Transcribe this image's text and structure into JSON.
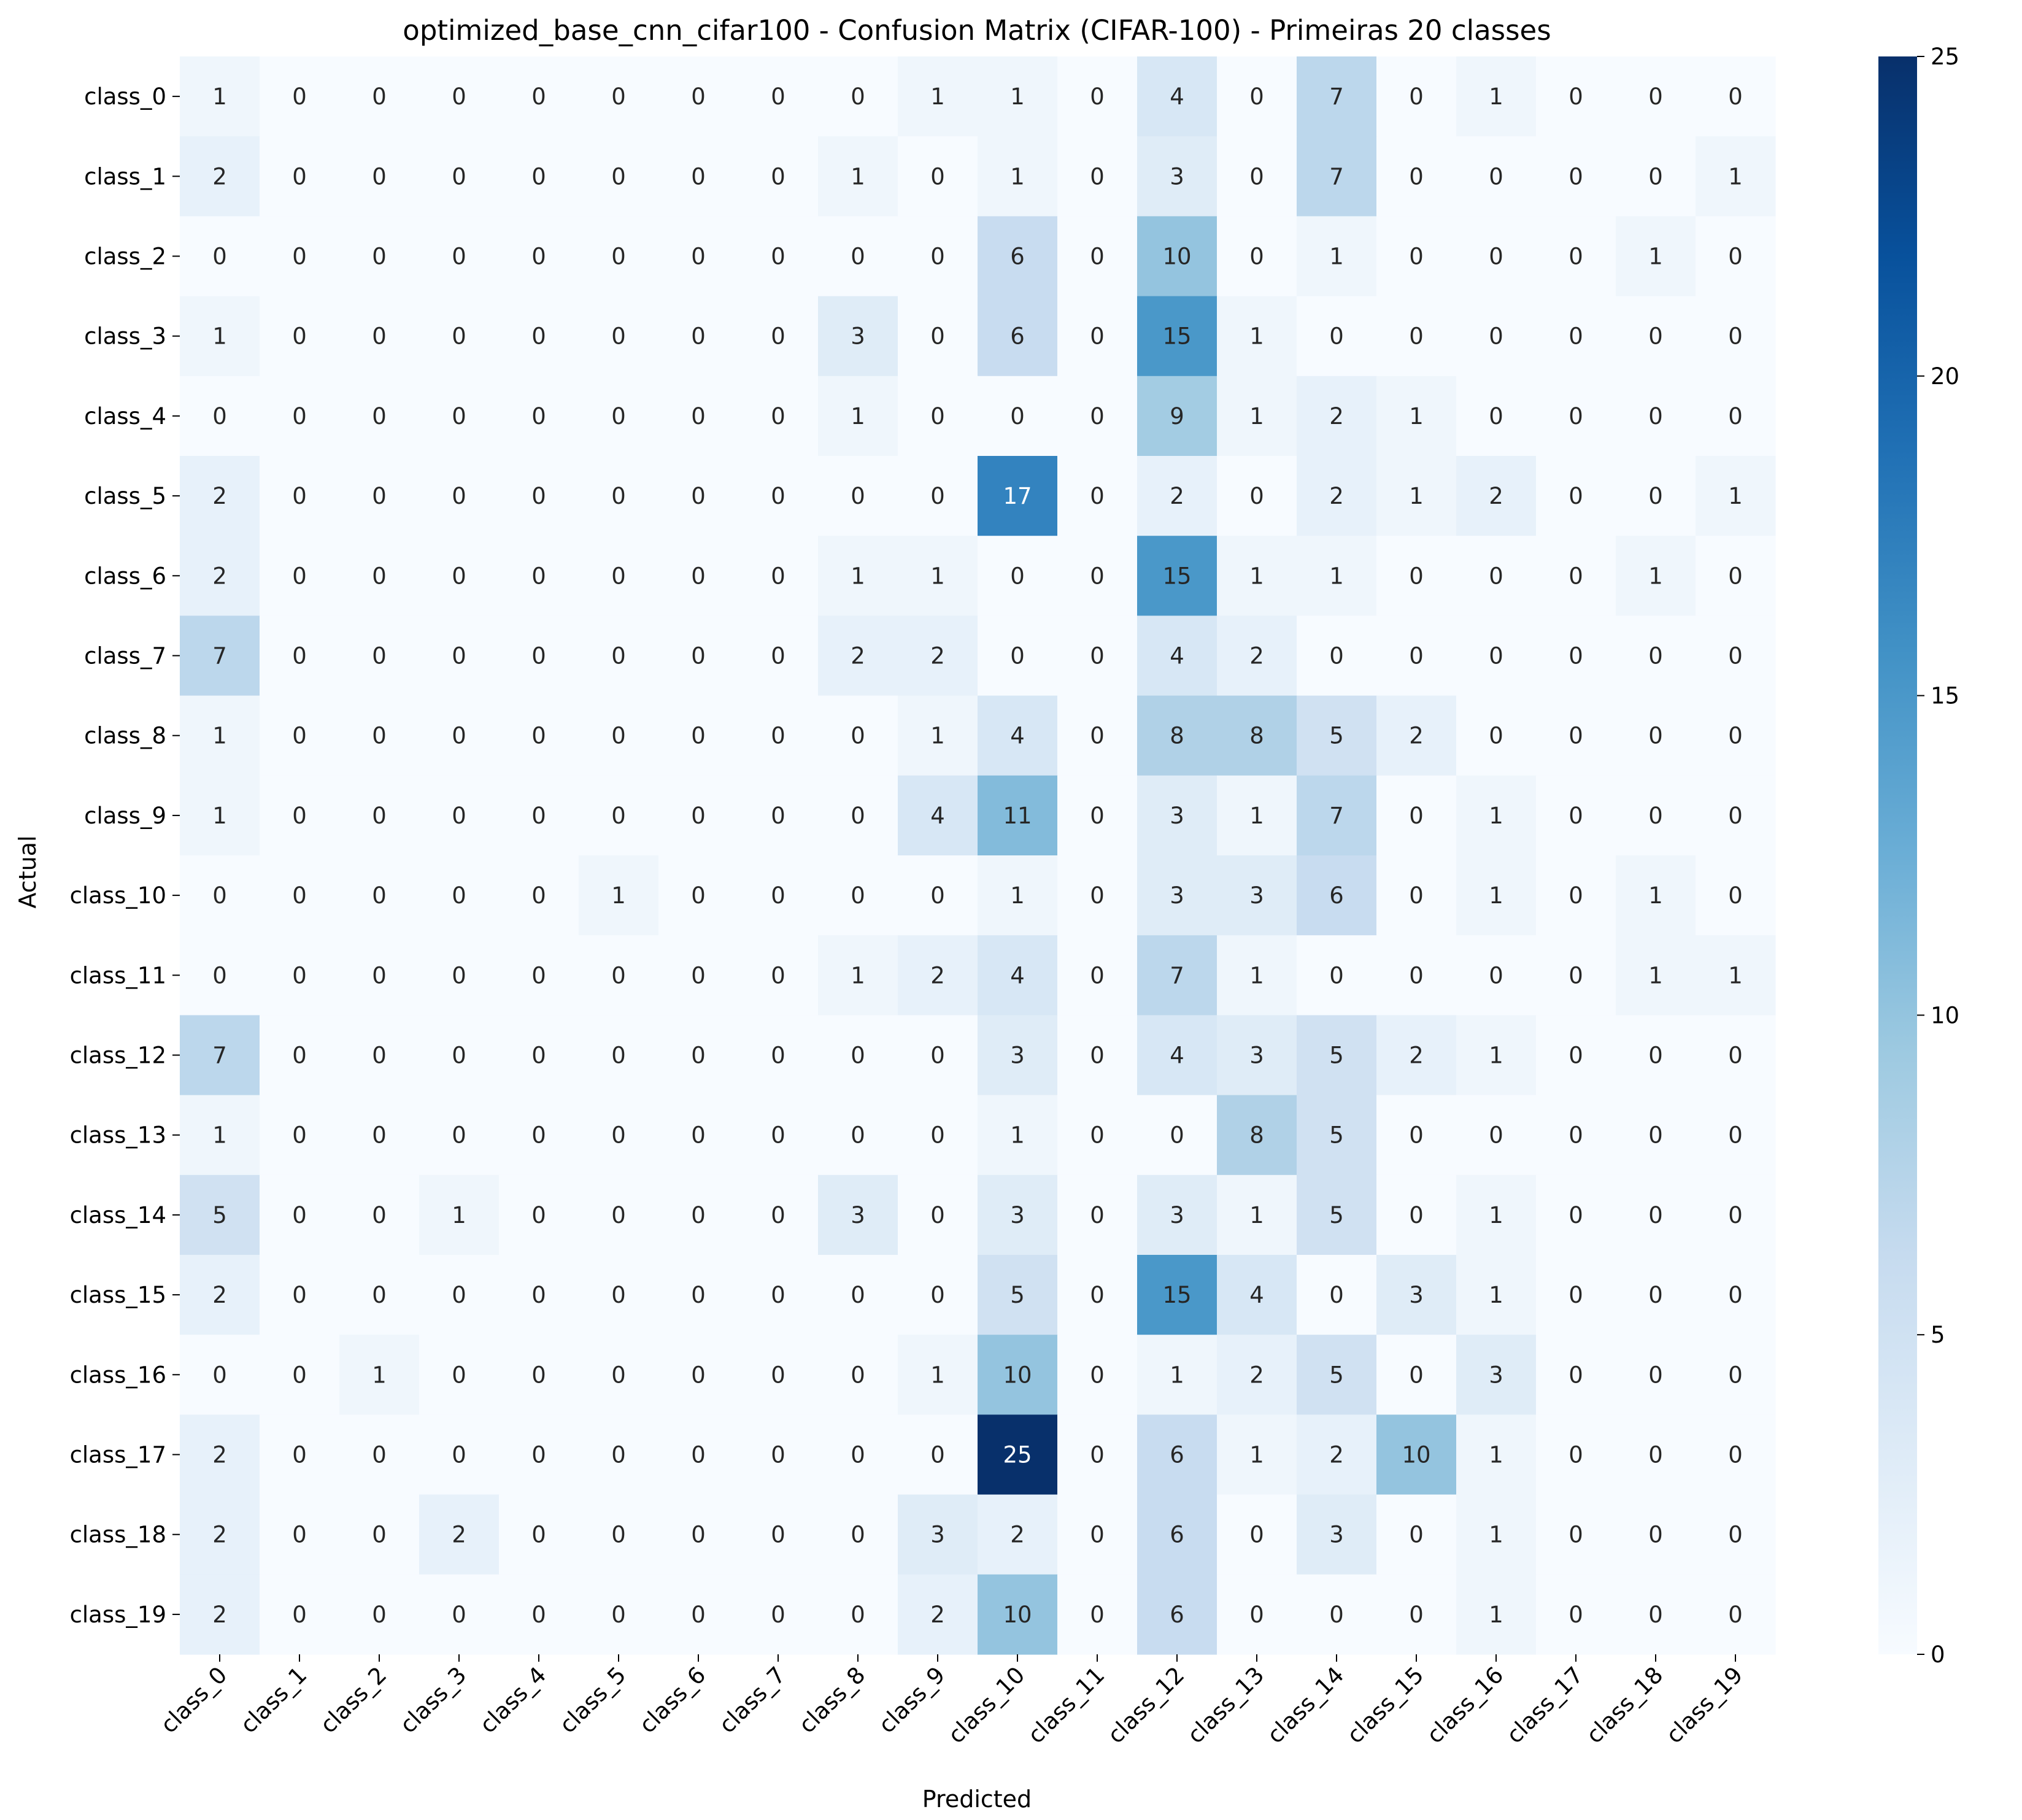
{
  "chart_data": {
    "type": "heatmap",
    "title": "optimized_base_cnn_cifar100 - Confusion Matrix (CIFAR-100) - Primeiras 20 classes",
    "xlabel": "Predicted",
    "ylabel": "Actual",
    "x_categories": [
      "class_0",
      "class_1",
      "class_2",
      "class_3",
      "class_4",
      "class_5",
      "class_6",
      "class_7",
      "class_8",
      "class_9",
      "class_10",
      "class_11",
      "class_12",
      "class_13",
      "class_14",
      "class_15",
      "class_16",
      "class_17",
      "class_18",
      "class_19"
    ],
    "y_categories": [
      "class_0",
      "class_1",
      "class_2",
      "class_3",
      "class_4",
      "class_5",
      "class_6",
      "class_7",
      "class_8",
      "class_9",
      "class_10",
      "class_11",
      "class_12",
      "class_13",
      "class_14",
      "class_15",
      "class_16",
      "class_17",
      "class_18",
      "class_19"
    ],
    "values": [
      [
        1,
        0,
        0,
        0,
        0,
        0,
        0,
        0,
        0,
        1,
        1,
        0,
        4,
        0,
        7,
        0,
        1,
        0,
        0,
        0
      ],
      [
        2,
        0,
        0,
        0,
        0,
        0,
        0,
        0,
        1,
        0,
        1,
        0,
        3,
        0,
        7,
        0,
        0,
        0,
        0,
        1
      ],
      [
        0,
        0,
        0,
        0,
        0,
        0,
        0,
        0,
        0,
        0,
        6,
        0,
        10,
        0,
        1,
        0,
        0,
        0,
        1,
        0
      ],
      [
        1,
        0,
        0,
        0,
        0,
        0,
        0,
        0,
        3,
        0,
        6,
        0,
        15,
        1,
        0,
        0,
        0,
        0,
        0,
        0
      ],
      [
        0,
        0,
        0,
        0,
        0,
        0,
        0,
        0,
        1,
        0,
        0,
        0,
        9,
        1,
        2,
        1,
        0,
        0,
        0,
        0
      ],
      [
        2,
        0,
        0,
        0,
        0,
        0,
        0,
        0,
        0,
        0,
        17,
        0,
        2,
        0,
        2,
        1,
        2,
        0,
        0,
        1
      ],
      [
        2,
        0,
        0,
        0,
        0,
        0,
        0,
        0,
        1,
        1,
        0,
        0,
        15,
        1,
        1,
        0,
        0,
        0,
        1,
        0
      ],
      [
        7,
        0,
        0,
        0,
        0,
        0,
        0,
        0,
        2,
        2,
        0,
        0,
        4,
        2,
        0,
        0,
        0,
        0,
        0,
        0
      ],
      [
        1,
        0,
        0,
        0,
        0,
        0,
        0,
        0,
        0,
        1,
        4,
        0,
        8,
        8,
        5,
        2,
        0,
        0,
        0,
        0
      ],
      [
        1,
        0,
        0,
        0,
        0,
        0,
        0,
        0,
        0,
        4,
        11,
        0,
        3,
        1,
        7,
        0,
        1,
        0,
        0,
        0
      ],
      [
        0,
        0,
        0,
        0,
        0,
        1,
        0,
        0,
        0,
        0,
        1,
        0,
        3,
        3,
        6,
        0,
        1,
        0,
        1,
        0
      ],
      [
        0,
        0,
        0,
        0,
        0,
        0,
        0,
        0,
        1,
        2,
        4,
        0,
        7,
        1,
        0,
        0,
        0,
        0,
        1,
        1
      ],
      [
        7,
        0,
        0,
        0,
        0,
        0,
        0,
        0,
        0,
        0,
        3,
        0,
        4,
        3,
        5,
        2,
        1,
        0,
        0,
        0
      ],
      [
        1,
        0,
        0,
        0,
        0,
        0,
        0,
        0,
        0,
        0,
        1,
        0,
        0,
        8,
        5,
        0,
        0,
        0,
        0,
        0
      ],
      [
        5,
        0,
        0,
        1,
        0,
        0,
        0,
        0,
        3,
        0,
        3,
        0,
        3,
        1,
        5,
        0,
        1,
        0,
        0,
        0
      ],
      [
        2,
        0,
        0,
        0,
        0,
        0,
        0,
        0,
        0,
        0,
        5,
        0,
        15,
        4,
        0,
        3,
        1,
        0,
        0,
        0
      ],
      [
        0,
        0,
        1,
        0,
        0,
        0,
        0,
        0,
        0,
        1,
        10,
        0,
        1,
        2,
        5,
        0,
        3,
        0,
        0,
        0
      ],
      [
        2,
        0,
        0,
        0,
        0,
        0,
        0,
        0,
        0,
        0,
        25,
        0,
        6,
        1,
        2,
        10,
        1,
        0,
        0,
        0
      ],
      [
        2,
        0,
        0,
        2,
        0,
        0,
        0,
        0,
        0,
        3,
        2,
        0,
        6,
        0,
        3,
        0,
        1,
        0,
        0,
        0
      ],
      [
        2,
        0,
        0,
        0,
        0,
        0,
        0,
        0,
        0,
        2,
        10,
        0,
        6,
        0,
        0,
        0,
        1,
        0,
        0,
        0
      ]
    ],
    "vmin": 0,
    "vmax": 25,
    "colormap": "Blues",
    "colorbar_ticks": [
      0,
      5,
      10,
      15,
      20,
      25
    ],
    "annotated": true,
    "grid": false
  }
}
